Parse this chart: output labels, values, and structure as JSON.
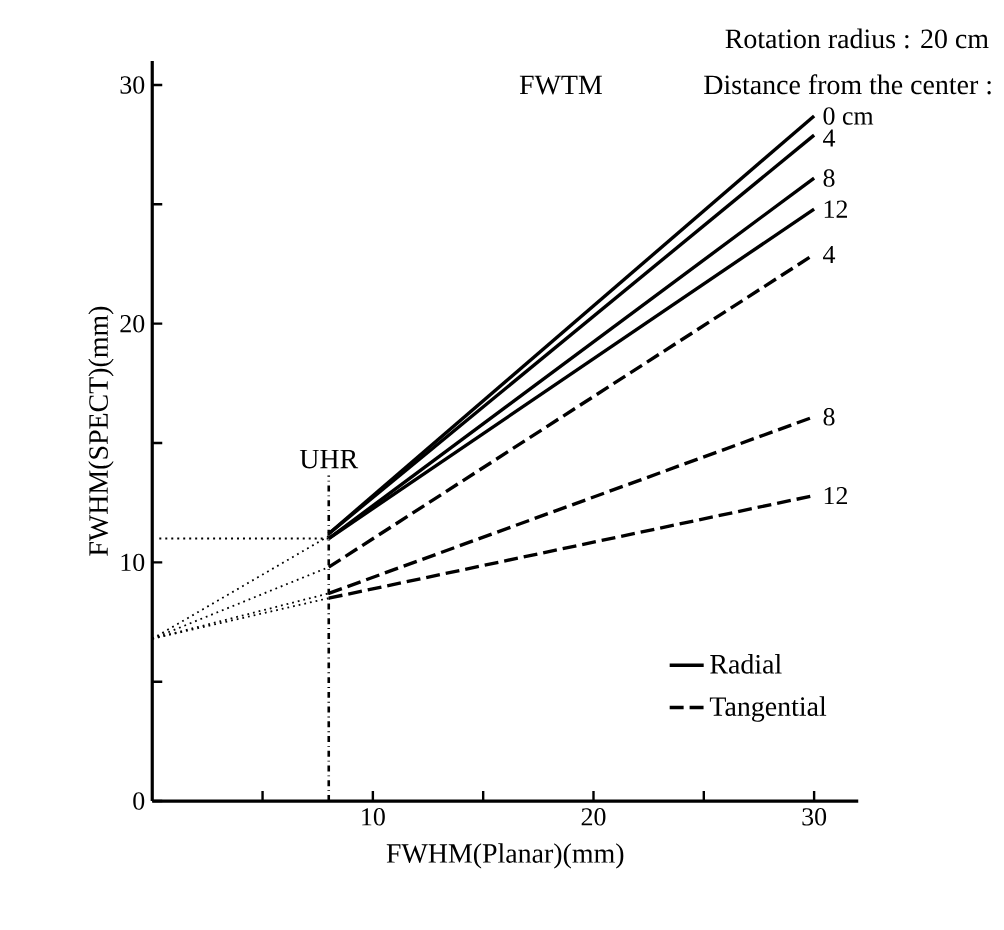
{
  "chart_data": {
    "type": "line",
    "xlabel": "FWHM(Planar)(mm)",
    "ylabel": "FWHM(SPECT)(mm)",
    "annotations": [
      "FWTM",
      "Rotation radius : 20 cm",
      "Distance from the center :",
      "0 cm",
      "4",
      "8",
      "12",
      "4",
      "8",
      "12"
    ],
    "xlim": [
      0,
      32
    ],
    "ylim": [
      0,
      31
    ],
    "xticks": [
      {
        "value": 5,
        "label": null
      },
      10,
      {
        "value": 15,
        "label": null
      },
      20,
      {
        "value": 25,
        "label": null
      },
      30
    ],
    "yticks": [
      0,
      {
        "value": 5,
        "label": null
      },
      10,
      {
        "value": 15,
        "label": null
      },
      20,
      {
        "value": 25,
        "label": null
      },
      30
    ],
    "legend": "bottom right",
    "grid": false,
    "marker": "none",
    "ref_lines": [
      {
        "axis": "x",
        "value": 8,
        "label": "UHR",
        "line_style": "dashdot",
        "color": "#000000"
      },
      {
        "axis": "y",
        "value": 11,
        "label": null,
        "line_style": "dotted",
        "color": "#000000"
      }
    ],
    "series": [
      {
        "name": "Radial",
        "x": [
          8,
          30
        ],
        "values": [
          11.2,
          28.7
        ],
        "line_style": "solid",
        "color": "#000000"
      },
      {
        "x": [
          8,
          30
        ],
        "values": [
          11.2,
          27.9
        ],
        "line_style": "solid",
        "color": "#000000"
      },
      {
        "x": [
          8,
          30
        ],
        "values": [
          11.0,
          26.1
        ],
        "line_style": "solid",
        "color": "#000000"
      },
      {
        "x": [
          8,
          30
        ],
        "values": [
          11.0,
          24.8
        ],
        "line_style": "solid",
        "color": "#000000"
      },
      {
        "name": "Tangential",
        "x": [
          8,
          30
        ],
        "values": [
          9.8,
          22.9
        ],
        "line_style": "dashed",
        "color": "#000000"
      },
      {
        "x": [
          8,
          30
        ],
        "values": [
          8.7,
          16.1
        ],
        "line_style": "dashed",
        "color": "#000000"
      },
      {
        "x": [
          8,
          30
        ],
        "values": [
          8.5,
          12.8
        ],
        "line_style": "dashed",
        "color": "#000000"
      },
      {
        "x": [
          0,
          8
        ],
        "values": [
          6.8,
          11.1
        ],
        "line_style": "dotted",
        "color": "#000000"
      },
      {
        "x": [
          0,
          8
        ],
        "values": [
          6.8,
          9.8
        ],
        "line_style": "dotted",
        "color": "#000000"
      },
      {
        "x": [
          0,
          8
        ],
        "values": [
          6.8,
          8.7
        ],
        "line_style": "dotted",
        "color": "#000000"
      },
      {
        "x": [
          0,
          8
        ],
        "values": [
          6.8,
          8.5
        ],
        "line_style": "dotted",
        "color": "#000000"
      }
    ]
  }
}
